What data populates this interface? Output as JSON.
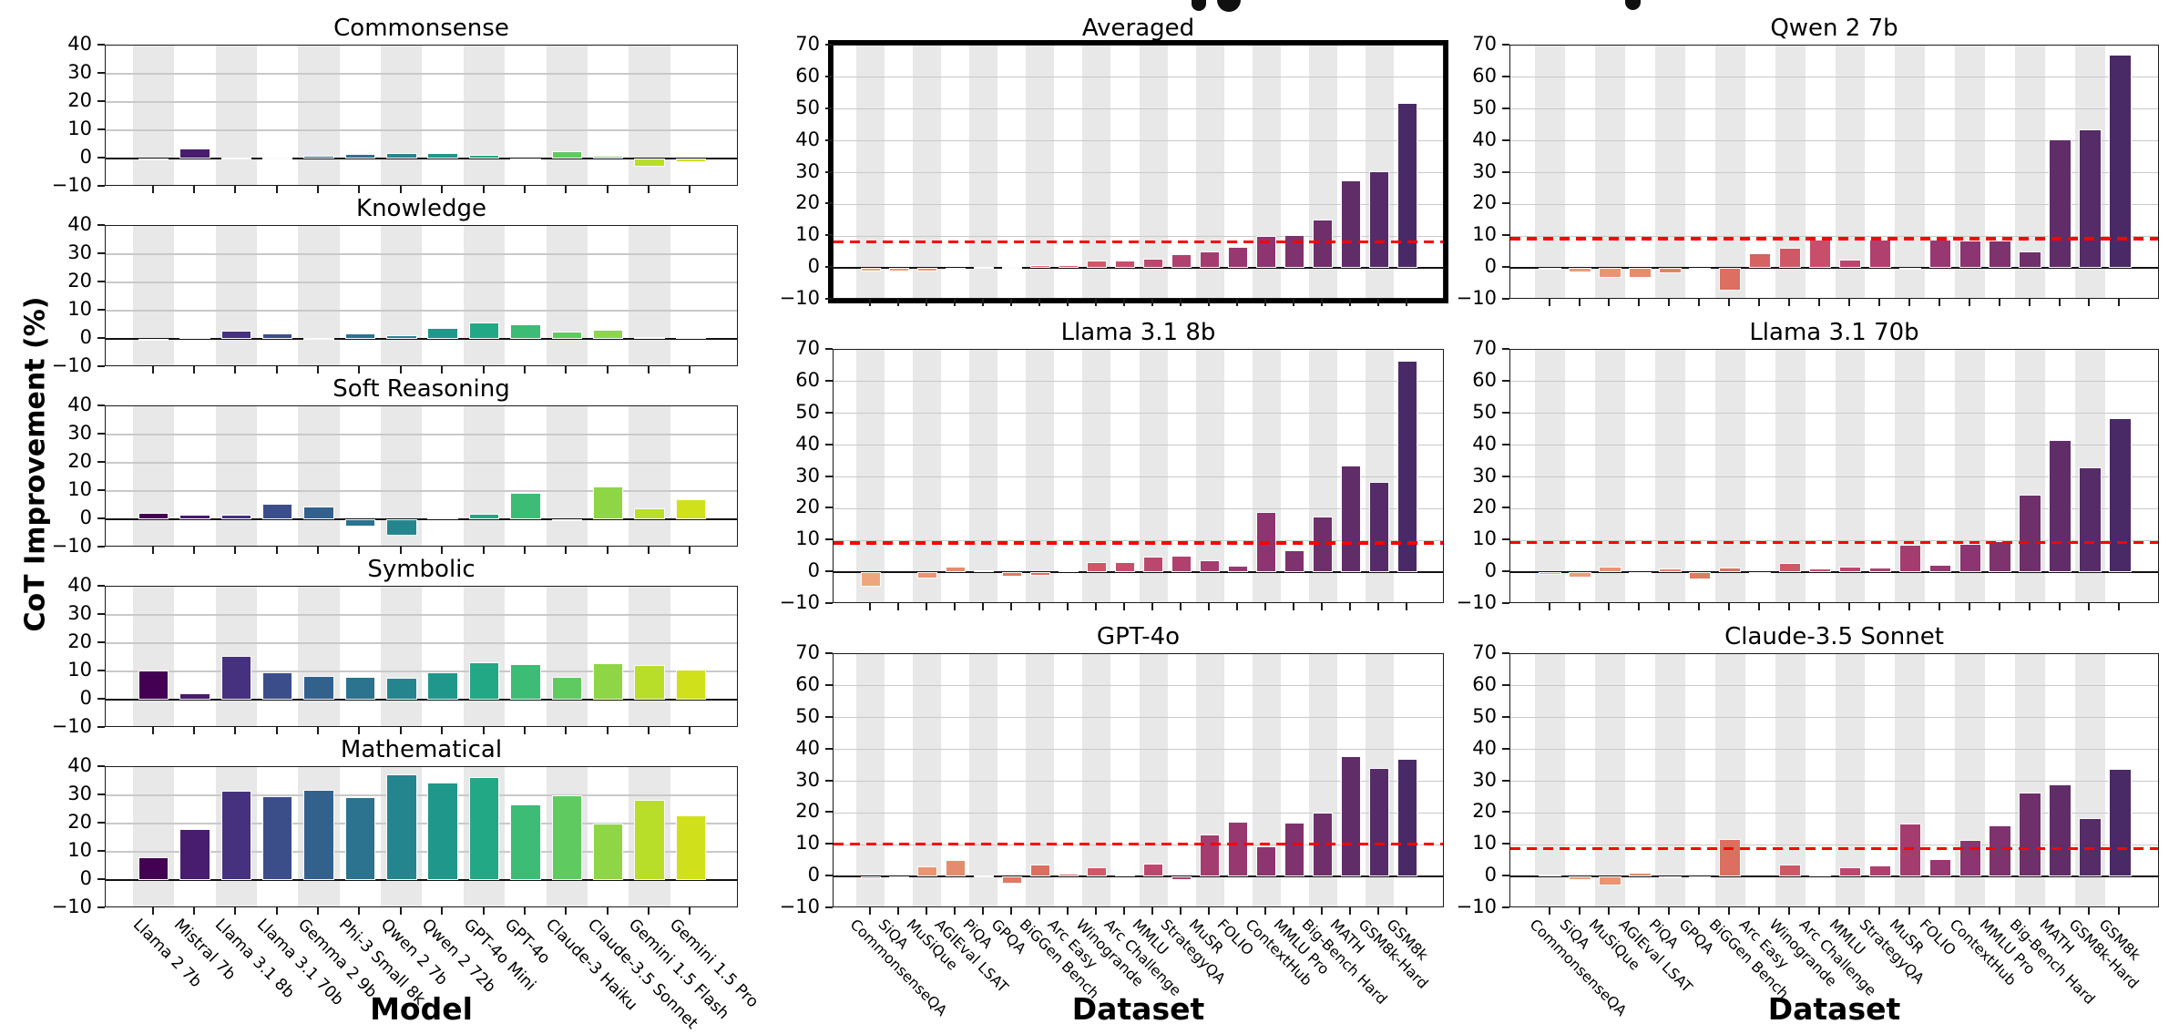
{
  "figure": {
    "y_axis_label": "CoT Improvement (%)",
    "model_axis_label": "Model",
    "dataset_axis_label": "Dataset",
    "models": [
      "Llama 2 7b",
      "Mistral 7b",
      "Llama 3.1 8b",
      "Llama 3.1 70b",
      "Gemma 2 9b",
      "Phi-3 Small 8k",
      "Qwen 2 7b",
      "Qwen 2 72b",
      "GPT-4o Mini",
      "GPT-4o",
      "Claude-3 Haiku",
      "Claude-3.5 Sonnet",
      "Gemini 1.5 Flash",
      "Gemini 1.5 Pro"
    ],
    "datasets": [
      "CommonsenseQA",
      "SiQA",
      "MuSiQue",
      "AGIEval LSAT",
      "PiQA",
      "GPQA",
      "BiGGen Bench",
      "Arc Easy",
      "Winogrande",
      "Arc Challenge",
      "MMLU",
      "StrategyQA",
      "MuSR",
      "FOLIO",
      "ContextHub",
      "MMLU Pro",
      "Big-Bench Hard",
      "MATH",
      "GSM8k-Hard",
      "GSM8k"
    ]
  },
  "style": {
    "red_line_color": "#ff0000",
    "band_color": "#e8e8e8",
    "grid_color": "#c9c9c9",
    "viridis_palette": [
      "#440154",
      "#481c6e",
      "#45317e",
      "#3c4e8a",
      "#33618d",
      "#2b738e",
      "#25858e",
      "#1f978b",
      "#22a884",
      "#3cbc75",
      "#5fca60",
      "#8ed645",
      "#b8de29",
      "#d0e11c"
    ],
    "flare_palette": [
      "#eda67e",
      "#eb9d79",
      "#e99573",
      "#e68c6e",
      "#e48369",
      "#e07a63",
      "#dc6f60",
      "#d66263",
      "#cf5867",
      "#c74f6b",
      "#bc476e",
      "#b0416f",
      "#a43c6f",
      "#983870",
      "#8d3570",
      "#7e326e",
      "#6e2f6b",
      "#602d69",
      "#552c67",
      "#4a2a66"
    ]
  },
  "chart_data": [
    {
      "id": "commonsense",
      "type": "bar",
      "title": "Commonsense",
      "x": "models",
      "palette": "viridis",
      "ylim": [
        -10,
        40
      ],
      "yticks": [
        40,
        30,
        20,
        10,
        0,
        -10
      ],
      "panel": {
        "col": "left",
        "row": 0
      },
      "show_x_labels": false,
      "values": [
        0.1,
        3.5,
        0.4,
        0.35,
        0.9,
        1.5,
        2.0,
        1.8,
        1.2,
        0.1,
        2.5,
        1.1,
        -2.8,
        -1.4
      ]
    },
    {
      "id": "knowledge",
      "type": "bar",
      "title": "Knowledge",
      "x": "models",
      "palette": "viridis",
      "ylim": [
        -10,
        40
      ],
      "yticks": [
        40,
        30,
        20,
        10,
        0,
        -10
      ],
      "panel": {
        "col": "left",
        "row": 1
      },
      "show_x_labels": false,
      "values": [
        0.1,
        0.6,
        2.9,
        1.8,
        0.2,
        1.9,
        1.2,
        3.8,
        5.8,
        5.3,
        2.7,
        3.3,
        0.8,
        0.5
      ]
    },
    {
      "id": "soft-reasoning",
      "type": "bar",
      "title": "Soft Reasoning",
      "x": "models",
      "palette": "viridis",
      "ylim": [
        -10,
        40
      ],
      "yticks": [
        40,
        30,
        20,
        10,
        0,
        -10
      ],
      "panel": {
        "col": "left",
        "row": 2
      },
      "show_x_labels": false,
      "values": [
        2.3,
        1.7,
        1.5,
        5.5,
        4.5,
        -2.5,
        -5.8,
        0.8,
        2.0,
        9.3,
        -0.5,
        11.7,
        4.0,
        7.0
      ]
    },
    {
      "id": "symbolic",
      "type": "bar",
      "title": "Symbolic",
      "x": "models",
      "palette": "viridis",
      "ylim": [
        -10,
        40
      ],
      "yticks": [
        40,
        30,
        20,
        10,
        0,
        -10
      ],
      "panel": {
        "col": "left",
        "row": 3
      },
      "show_x_labels": false,
      "values": [
        10.2,
        2.2,
        15.5,
        9.8,
        8.5,
        8.2,
        7.9,
        9.8,
        13.1,
        12.6,
        8.2,
        13.0,
        12.2,
        10.8
      ]
    },
    {
      "id": "mathematical",
      "type": "bar",
      "title": "Mathematical",
      "x": "models",
      "palette": "viridis",
      "ylim": [
        -10,
        40
      ],
      "yticks": [
        40,
        30,
        20,
        10,
        0,
        -10
      ],
      "panel": {
        "col": "left",
        "row": 4
      },
      "show_x_labels": true,
      "values": [
        8.0,
        18.0,
        31.5,
        29.8,
        32.0,
        29.2,
        37.3,
        34.5,
        36.4,
        26.7,
        29.9,
        20.1,
        28.3,
        23.0
      ]
    },
    {
      "id": "averaged",
      "type": "bar",
      "title": "Averaged",
      "x": "datasets",
      "palette": "flare",
      "ylim": [
        -10,
        70
      ],
      "yticks": [
        70,
        60,
        50,
        40,
        30,
        20,
        10,
        0,
        -10
      ],
      "red_dashed_line": 8.2,
      "highlighted": true,
      "panel": {
        "col": "middle",
        "row": 0
      },
      "show_x_labels": false,
      "values": [
        -1.0,
        -1.0,
        -1.0,
        0.1,
        0.3,
        0.4,
        0.8,
        1.0,
        2.3,
        2.4,
        3.0,
        4.4,
        5.3,
        6.5,
        10.0,
        10.4,
        15.3,
        27.7,
        30.5,
        52.0
      ]
    },
    {
      "id": "qwen-2-7b",
      "type": "bar",
      "title": "Qwen 2 7b",
      "x": "datasets",
      "palette": "flare",
      "ylim": [
        -10,
        70
      ],
      "yticks": [
        70,
        60,
        50,
        40,
        30,
        20,
        10,
        0,
        -10
      ],
      "red_dashed_line": 9.2,
      "highlighted": false,
      "panel": {
        "col": "right",
        "row": 0
      },
      "show_x_labels": false,
      "values": [
        -0.5,
        -1.5,
        -3.2,
        -3.0,
        -1.6,
        -0.4,
        -7.2,
        4.6,
        6.3,
        8.8,
        2.7,
        8.8,
        -0.4,
        8.8,
        8.6,
        8.6,
        5.2,
        40.6,
        43.6,
        67.0
      ]
    },
    {
      "id": "llama-3-1-8b",
      "type": "bar",
      "title": "Llama 3.1 8b",
      "x": "datasets",
      "palette": "flare",
      "ylim": [
        -10,
        70
      ],
      "yticks": [
        70,
        60,
        50,
        40,
        30,
        20,
        10,
        0,
        -10
      ],
      "red_dashed_line": 9.2,
      "highlighted": false,
      "panel": {
        "col": "middle",
        "row": 1
      },
      "show_x_labels": false,
      "values": [
        -4.5,
        0.0,
        -2.0,
        1.8,
        0.7,
        -1.5,
        -1.2,
        0.5,
        3.2,
        3.3,
        5.0,
        5.2,
        3.7,
        2.0,
        19.0,
        7.0,
        17.5,
        33.5,
        28.5,
        66.5
      ]
    },
    {
      "id": "llama-3-1-70b",
      "type": "bar",
      "title": "Llama 3.1 70b",
      "x": "datasets",
      "palette": "flare",
      "ylim": [
        -10,
        70
      ],
      "yticks": [
        70,
        60,
        50,
        40,
        30,
        20,
        10,
        0,
        -10
      ],
      "red_dashed_line": 9.3,
      "highlighted": false,
      "panel": {
        "col": "right",
        "row": 1
      },
      "show_x_labels": false,
      "values": [
        -0.8,
        -1.8,
        1.7,
        -0.3,
        1.2,
        -2.3,
        1.6,
        -0.2,
        2.8,
        1.2,
        1.7,
        1.5,
        8.5,
        2.2,
        8.8,
        9.8,
        24.5,
        41.5,
        33.0,
        48.5
      ]
    },
    {
      "id": "gpt-4o",
      "type": "bar",
      "title": "GPT-4o",
      "x": "datasets",
      "palette": "flare",
      "ylim": [
        -10,
        70
      ],
      "yticks": [
        70,
        60,
        50,
        40,
        30,
        20,
        10,
        0,
        -10
      ],
      "red_dashed_line": 10.3,
      "highlighted": false,
      "panel": {
        "col": "middle",
        "row": 2
      },
      "show_x_labels": true,
      "values": [
        -0.7,
        0.1,
        3.3,
        5.2,
        0.2,
        -2.4,
        3.9,
        0.8,
        3.0,
        0.6,
        4.1,
        -1.0,
        13.2,
        17.2,
        9.6,
        17.0,
        20.0,
        38.0,
        34.2,
        37.0
      ]
    },
    {
      "id": "claude-3-5-sonnet",
      "type": "bar",
      "title": "Claude-3.5 Sonnet",
      "x": "datasets",
      "palette": "flare",
      "ylim": [
        -10,
        70
      ],
      "yticks": [
        70,
        60,
        50,
        40,
        30,
        20,
        10,
        0,
        -10
      ],
      "red_dashed_line": 8.7,
      "highlighted": false,
      "panel": {
        "col": "right",
        "row": 2
      },
      "show_x_labels": true,
      "values": [
        0.5,
        -1.0,
        -2.7,
        1.3,
        0.1,
        -0.3,
        11.8,
        0.0,
        3.7,
        0.5,
        2.8,
        3.5,
        16.8,
        5.5,
        11.5,
        16.0,
        26.5,
        29.0,
        18.3,
        34.0
      ]
    }
  ]
}
